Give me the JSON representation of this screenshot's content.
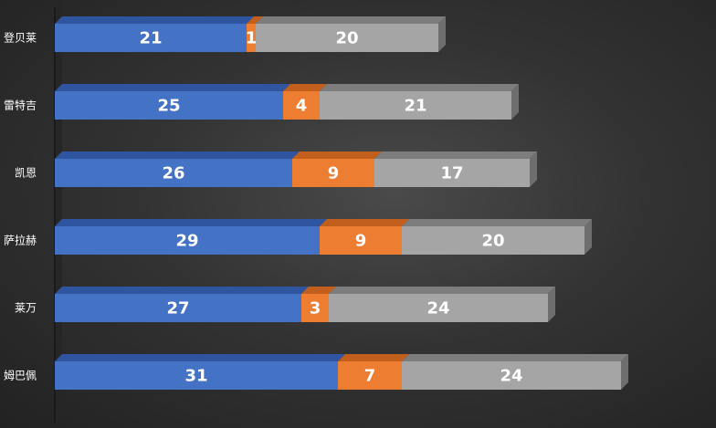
{
  "chart_data": {
    "type": "bar",
    "orientation": "horizontal",
    "stacked": true,
    "categories": [
      "登贝莱",
      "雷特吉",
      "凯恩",
      "萨拉赫",
      "莱万",
      "姆巴佩"
    ],
    "series": [
      {
        "values": [
          21,
          25,
          26,
          29,
          27,
          31
        ]
      },
      {
        "values": [
          1,
          4,
          9,
          9,
          3,
          7
        ]
      },
      {
        "values": [
          20,
          21,
          17,
          20,
          24,
          24
        ]
      }
    ],
    "title": "",
    "xlabel": "",
    "ylabel": "",
    "xlim": [
      0,
      62
    ],
    "grid": false,
    "legend": "none",
    "colors": {
      "series": [
        "#4472c4",
        "#ed7d31",
        "#a5a5a5"
      ],
      "series_top": [
        "#2f55a0",
        "#c25f1d",
        "#7d7d7d"
      ],
      "series_side": [
        "#2f4f8f",
        "#b05616",
        "#6e6e6e"
      ],
      "text": "#ffffff",
      "axis": "#1a1a1a"
    }
  }
}
